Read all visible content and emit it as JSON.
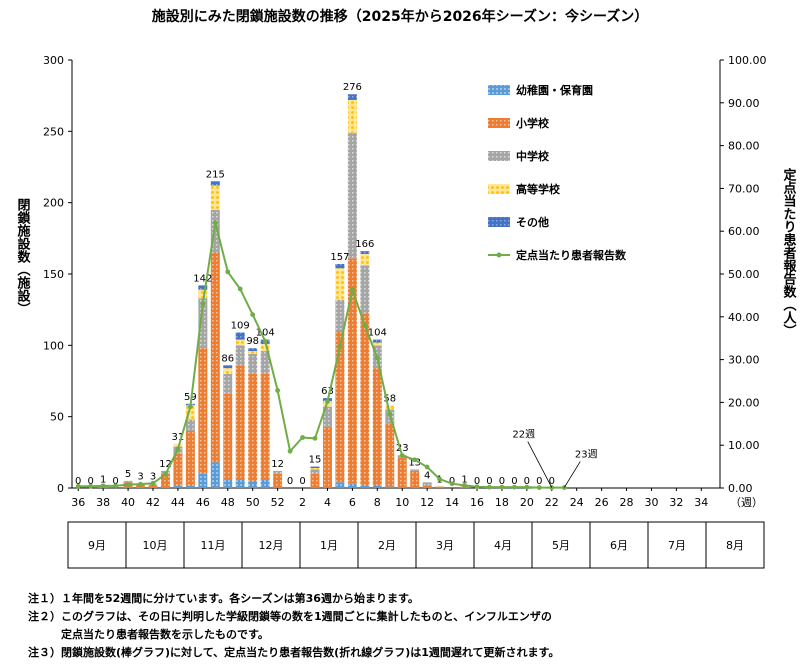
{
  "chart_data": {
    "type": "bar",
    "title": "施設別にみた閉鎖施設数の推移（2025年から2026年シーズン：今シーズン）",
    "ylabel": "閉鎖施設数（施設）",
    "y2label": "定点当たり患者報告数（人）",
    "xunit": "（週）",
    "ylim": [
      0,
      300
    ],
    "y2lim": [
      0,
      100
    ],
    "yticks": [
      "0",
      "50",
      "100",
      "150",
      "200",
      "250",
      "300"
    ],
    "y2ticks": [
      "0.00",
      "10.00",
      "20.00",
      "30.00",
      "40.00",
      "50.00",
      "60.00",
      "70.00",
      "80.00",
      "90.00",
      "100.00"
    ],
    "weeks": [
      36,
      37,
      38,
      39,
      40,
      41,
      42,
      43,
      44,
      45,
      46,
      47,
      48,
      49,
      50,
      51,
      52,
      1,
      2,
      3,
      4,
      5,
      6,
      7,
      8,
      9,
      10,
      11,
      12,
      13,
      14,
      15,
      16,
      17,
      18,
      19,
      20,
      21,
      22,
      23,
      24,
      25,
      26,
      27,
      28,
      29,
      30,
      31,
      32,
      33,
      34,
      35
    ],
    "x_tick_labels": [
      "36",
      "38",
      "40",
      "42",
      "44",
      "46",
      "48",
      "50",
      "52",
      "2",
      "4",
      "6",
      "8",
      "10",
      "12",
      "14",
      "16",
      "18",
      "20",
      "22",
      "24",
      "26",
      "28",
      "30",
      "32",
      "34"
    ],
    "totals_labels": [
      "0",
      "0",
      "1",
      "0",
      "5",
      "3",
      "3",
      "12",
      "31",
      "59",
      "142",
      "215",
      "86",
      "109",
      "98",
      "104",
      "12",
      "0",
      "0",
      "15",
      "63",
      "157",
      "276",
      "166",
      "104",
      "58",
      "23",
      "13",
      "4",
      "1",
      "0",
      "1",
      "0",
      "0",
      "0",
      "0",
      "0",
      "0",
      "0",
      "",
      "",
      "",
      "",
      "",
      "",
      "",
      "",
      "",
      "",
      "",
      "",
      ""
    ],
    "series": [
      {
        "name": "幼稚園・保育園",
        "color": "#5b9bd5",
        "values": [
          0,
          0,
          0,
          0,
          0,
          0,
          0,
          0,
          2,
          2,
          10,
          18,
          6,
          6,
          5,
          6,
          0,
          0,
          0,
          0,
          0,
          4,
          3,
          2,
          2,
          1,
          0,
          0,
          0,
          0,
          0,
          0,
          0,
          0,
          0,
          0,
          0,
          0,
          0,
          0,
          0,
          0,
          0,
          0,
          0,
          0,
          0,
          0,
          0,
          0,
          0,
          0
        ]
      },
      {
        "name": "小学校",
        "color": "#ed7d31",
        "values": [
          0,
          0,
          1,
          0,
          4,
          3,
          2,
          10,
          22,
          38,
          88,
          147,
          60,
          80,
          75,
          74,
          10,
          0,
          0,
          10,
          43,
          106,
          158,
          120,
          82,
          44,
          21,
          12,
          2,
          1,
          0,
          1,
          0,
          0,
          0,
          0,
          0,
          0,
          0,
          0,
          0,
          0,
          0,
          0,
          0,
          0,
          0,
          0,
          0,
          0,
          0,
          0
        ]
      },
      {
        "name": "中学校",
        "color": "#a5a5a5",
        "values": [
          0,
          0,
          0,
          0,
          1,
          0,
          1,
          2,
          5,
          8,
          35,
          30,
          14,
          14,
          14,
          16,
          2,
          0,
          0,
          3,
          14,
          22,
          88,
          34,
          16,
          10,
          2,
          1,
          2,
          0,
          0,
          0,
          0,
          0,
          0,
          0,
          0,
          0,
          0,
          0,
          0,
          0,
          0,
          0,
          0,
          0,
          0,
          0,
          0,
          0,
          0,
          0
        ]
      },
      {
        "name": "高等学校",
        "color": "#ffc000",
        "values": [
          0,
          0,
          0,
          0,
          0,
          0,
          0,
          0,
          2,
          10,
          6,
          17,
          4,
          4,
          2,
          5,
          0,
          0,
          0,
          1,
          4,
          22,
          23,
          8,
          2,
          3,
          0,
          0,
          0,
          0,
          0,
          0,
          0,
          0,
          0,
          0,
          0,
          0,
          0,
          0,
          0,
          0,
          0,
          0,
          0,
          0,
          0,
          0,
          0,
          0,
          0,
          0
        ]
      },
      {
        "name": "その他",
        "color": "#4472c4",
        "values": [
          0,
          0,
          0,
          0,
          0,
          0,
          0,
          0,
          0,
          1,
          3,
          3,
          2,
          5,
          2,
          3,
          0,
          0,
          0,
          1,
          2,
          3,
          4,
          2,
          2,
          0,
          0,
          0,
          0,
          0,
          0,
          0,
          0,
          0,
          0,
          0,
          0,
          0,
          0,
          0,
          0,
          0,
          0,
          0,
          0,
          0,
          0,
          0,
          0,
          0,
          0,
          0
        ]
      }
    ],
    "line": {
      "name": "定点当たり患者報告数",
      "color": "#70ad47",
      "values": [
        0.4,
        0.4,
        0.5,
        0.5,
        0.8,
        0.9,
        1.1,
        3.2,
        9.1,
        19.0,
        43.0,
        62.0,
        50.5,
        46.5,
        40.5,
        34.3,
        22.8,
        8.6,
        11.8,
        11.6,
        20.2,
        33.0,
        46.3,
        38.0,
        30.4,
        17.2,
        7.6,
        6.6,
        4.9,
        2.1,
        1.0,
        0.6,
        0.3,
        0.2,
        0.2,
        0.2,
        0.2,
        0.1,
        0.1,
        0.1,
        null,
        null,
        null,
        null,
        null,
        null,
        null,
        null,
        null,
        null,
        null,
        null
      ]
    },
    "annotations": [
      {
        "text": "22週",
        "week_index": 38
      },
      {
        "text": "23週",
        "week_index": 39
      }
    ],
    "legend_position": "top-right"
  },
  "months": [
    "9月",
    "10月",
    "11月",
    "12月",
    "1月",
    "2月",
    "3月",
    "4月",
    "5月",
    "6月",
    "7月",
    "8月"
  ],
  "notes": [
    "注１）１年間を52週間に分けています。各シーズンは第36週から始まります。",
    "注２）このグラフは、その日に判明した学級閉鎖等の数を1週間ごとに集計したものと、インフルエンザの",
    "　　　定点当たり患者報告数を示したものです。",
    "注３）閉鎖施設数(棒グラフ)に対して、定点当たり患者報告数(折れ線グラフ)は1週間遅れて更新されます。"
  ]
}
